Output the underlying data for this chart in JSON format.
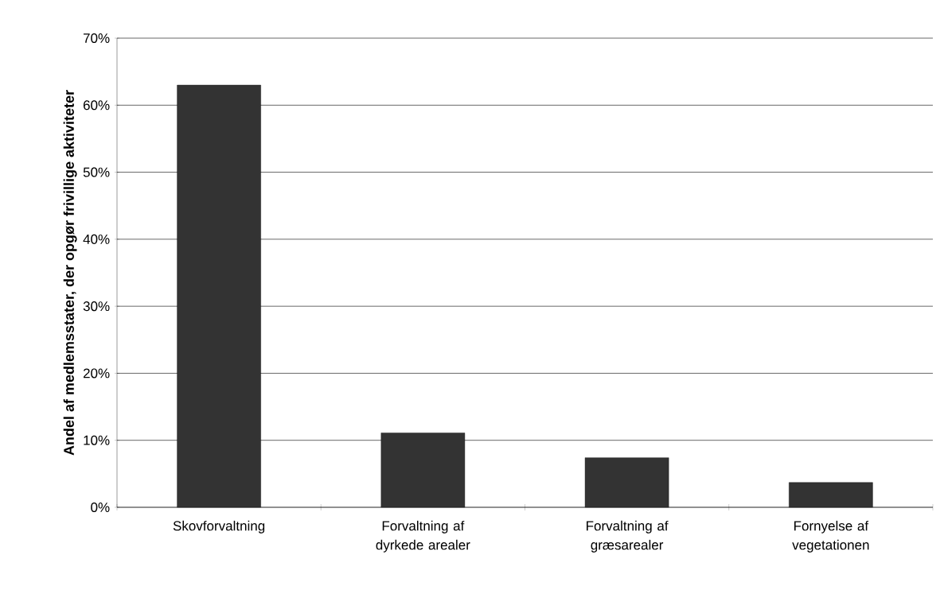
{
  "chart_data": {
    "type": "bar",
    "ylabel": "Andel af medlemsstater, der opgør frivillige aktiviteter",
    "categories": [
      "Skovforvaltning",
      "Forvaltning af dyrkede arealer",
      "Forvaltning af græsarealer",
      "Fornyelse af vegetationen"
    ],
    "values": [
      63,
      11.1,
      7.4,
      3.7
    ],
    "color": "#333333",
    "ylim": [
      0,
      70
    ],
    "yticks": [
      {
        "value": 0,
        "label": "0%"
      },
      {
        "value": 10,
        "label": "10%"
      },
      {
        "value": 20,
        "label": "20%"
      },
      {
        "value": 30,
        "label": "30%"
      },
      {
        "value": 40,
        "label": "40%"
      },
      {
        "value": 50,
        "label": "50%"
      },
      {
        "value": 60,
        "label": "60%"
      },
      {
        "value": 70,
        "label": "70%"
      }
    ],
    "grid": "y"
  }
}
